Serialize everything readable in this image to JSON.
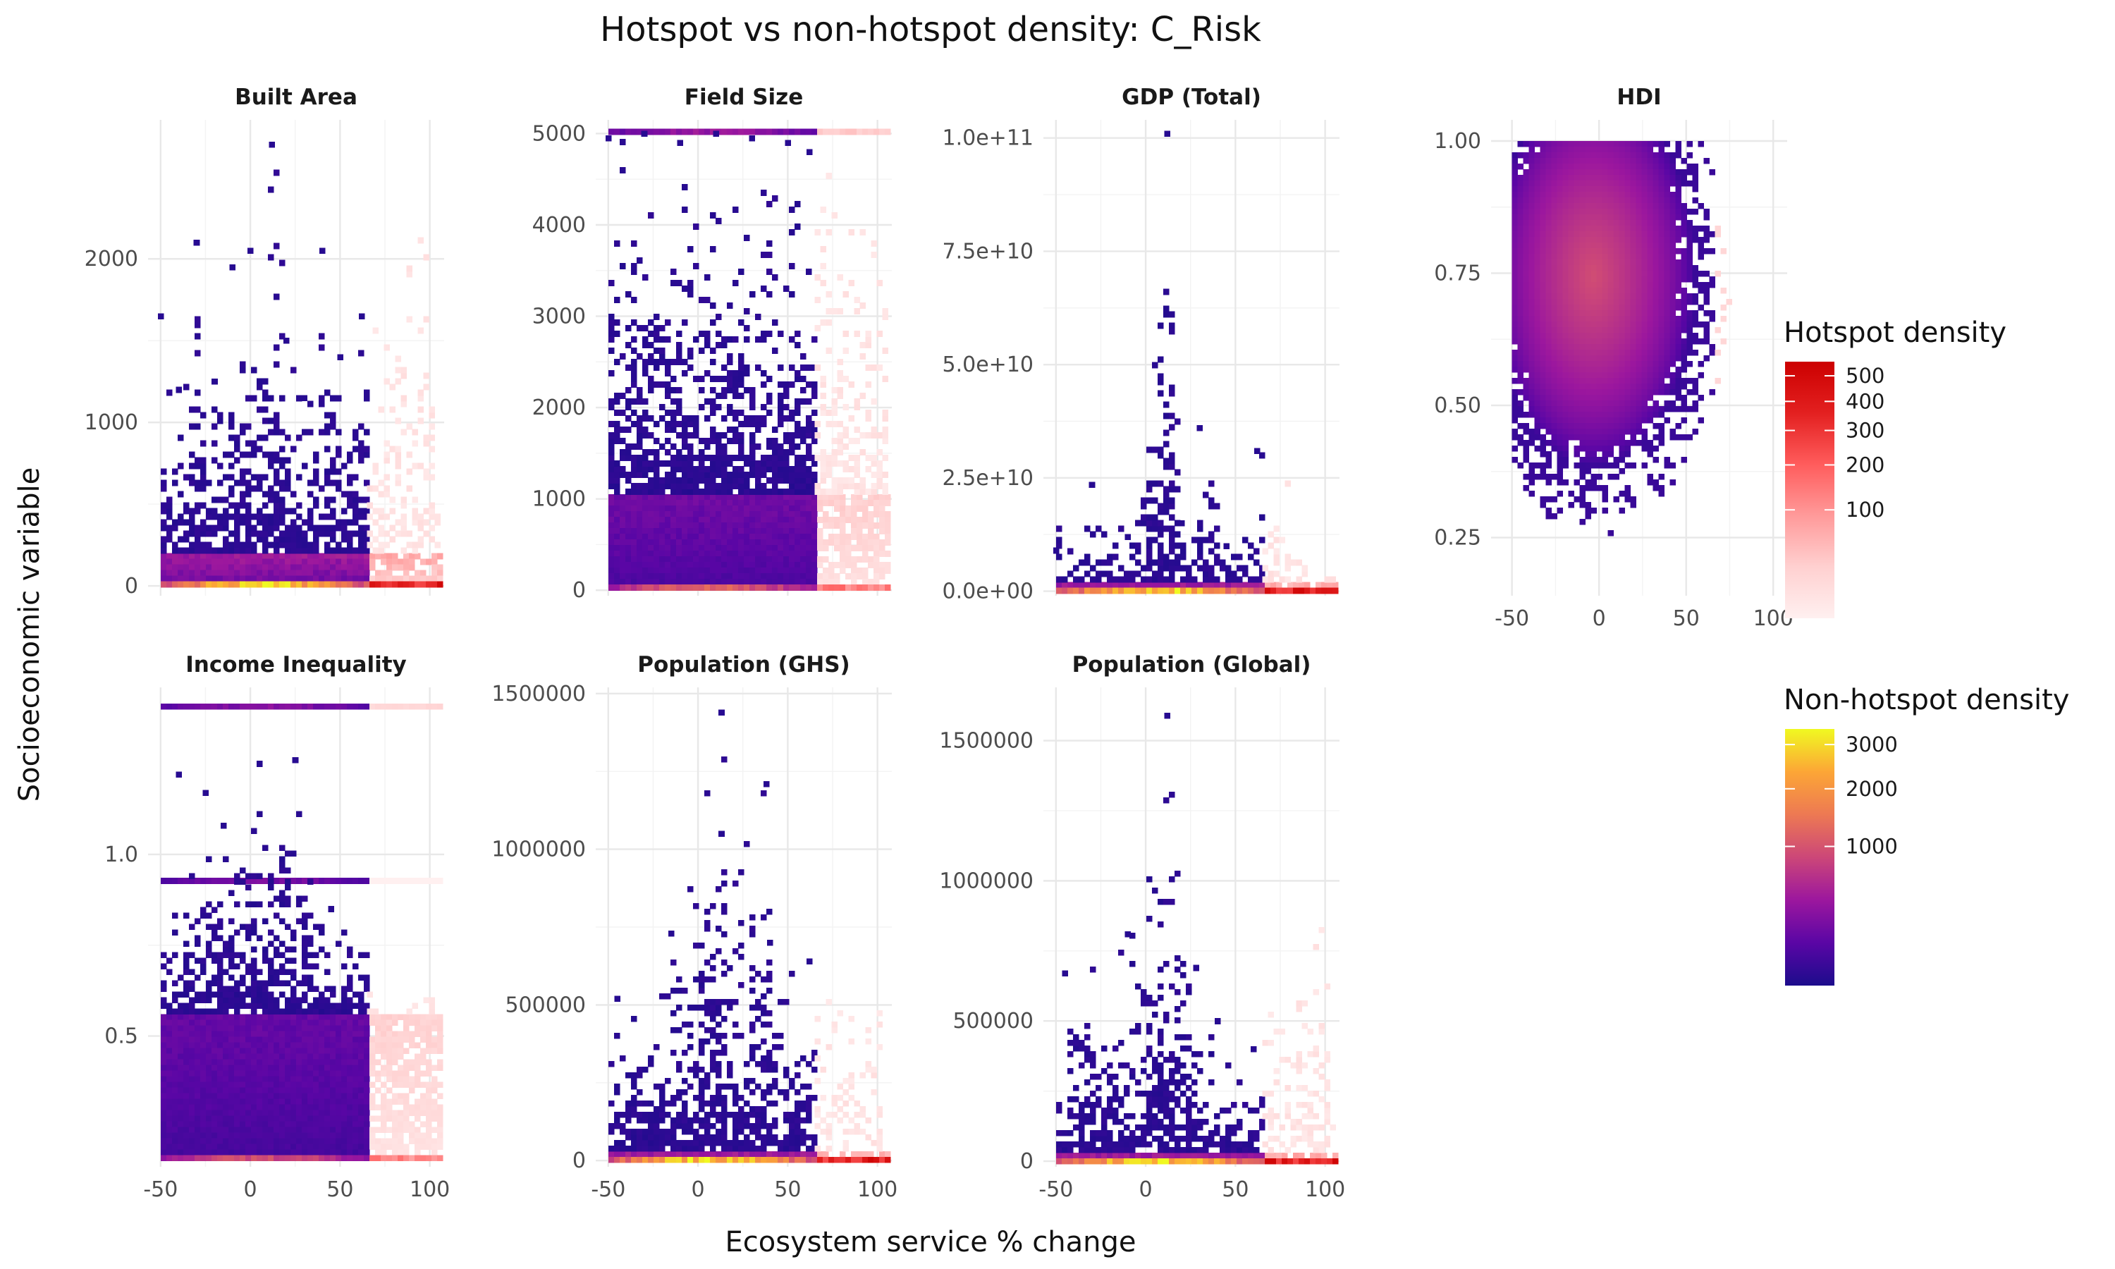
{
  "chart_data": {
    "type": "heatmap",
    "title": "Hotspot vs non-hotspot density: C_Risk",
    "xlabel": "Ecosystem service % change",
    "ylabel": "Socioeconomic variable",
    "grid": true,
    "legend_position": "right",
    "legends": [
      {
        "name": "Hotspot density",
        "scale": "sqrt",
        "colors": [
          "#fff0f0",
          "#ffd0d0",
          "#ff9a9a",
          "#ff5c5c",
          "#e32020",
          "#cc0000"
        ],
        "domain": [
          0,
          560
        ],
        "breaks": [
          100,
          200,
          300,
          400,
          500
        ],
        "labels": [
          "100",
          "200",
          "300",
          "400",
          "500"
        ]
      },
      {
        "name": "Non-hotspot density",
        "scale": "sqrt",
        "colors": [
          "#1c0c8c",
          "#5a06a5",
          "#9c179e",
          "#cc4778",
          "#ed7953",
          "#fca636",
          "#f0f921"
        ],
        "domain": [
          0,
          3400
        ],
        "breaks": [
          1000,
          2000,
          3000
        ],
        "labels": [
          "1000",
          "2000",
          "3000"
        ]
      }
    ],
    "panels": [
      {
        "name": "Built Area",
        "xlim": [
          -57,
          108
        ],
        "ylim": [
          -60,
          2850
        ],
        "xticks": [
          -50,
          0,
          50,
          100
        ],
        "xtick_labels": [
          "-50",
          "0",
          "50",
          "100"
        ],
        "yticks": [
          0,
          1000,
          2000
        ],
        "ytick_labels": [
          "0",
          "1000",
          "2000"
        ],
        "threshold_x": 65,
        "bands": [
          {
            "y0": 0,
            "y1": 200,
            "nonhotspot_peak": 3300,
            "hotspot_peak": 560
          }
        ],
        "scatter_max": [
          {
            "x": -50,
            "y": 1650
          },
          {
            "x": -40,
            "y": 1200
          },
          {
            "x": -30,
            "y": 2100
          },
          {
            "x": -20,
            "y": 1250
          },
          {
            "x": -10,
            "y": 1950
          },
          {
            "x": 0,
            "y": 2050
          },
          {
            "x": 12,
            "y": 2700
          },
          {
            "x": 20,
            "y": 1500
          },
          {
            "x": 30,
            "y": 1150
          },
          {
            "x": 40,
            "y": 2050
          },
          {
            "x": 50,
            "y": 1400
          },
          {
            "x": 62,
            "y": 1650
          }
        ],
        "hotspot_max": [
          {
            "x": 68,
            "y": 1050
          },
          {
            "x": 80,
            "y": 1700
          },
          {
            "x": 90,
            "y": 2150
          },
          {
            "x": 100,
            "y": 1000
          },
          {
            "x": 106,
            "y": 600
          }
        ]
      },
      {
        "name": "Field Size",
        "xlim": [
          -57,
          108
        ],
        "ylim": [
          -60,
          5150
        ],
        "xticks": [
          -50,
          0,
          50,
          100
        ],
        "xtick_labels": [
          "-50",
          "0",
          "50",
          "100"
        ],
        "yticks": [
          0,
          1000,
          2000,
          3000,
          4000,
          5000
        ],
        "ytick_labels": [
          "0",
          "1000",
          "2000",
          "3000",
          "4000",
          "5000"
        ],
        "threshold_x": 65,
        "bands": [
          {
            "y0": 0,
            "y1": 1050,
            "nonhotspot_peak": 1400,
            "hotspot_peak": 200
          },
          {
            "y0": 4990,
            "y1": 5040,
            "nonhotspot_peak": 420,
            "hotspot_peak": 40
          }
        ],
        "scatter_max": [
          {
            "x": -50,
            "y": 4950
          },
          {
            "x": -30,
            "y": 5000
          },
          {
            "x": -10,
            "y": 4900
          },
          {
            "x": 10,
            "y": 5000
          },
          {
            "x": 30,
            "y": 4950
          },
          {
            "x": 50,
            "y": 4900
          },
          {
            "x": 62,
            "y": 4800
          }
        ],
        "hotspot_max": [
          {
            "x": 70,
            "y": 4700
          },
          {
            "x": 85,
            "y": 4500
          },
          {
            "x": 100,
            "y": 4200
          }
        ]
      },
      {
        "name": "GDP (Total)",
        "xlim": [
          -57,
          108
        ],
        "ylim": [
          -1000000000,
          104000000000
        ],
        "xticks": [
          -50,
          0,
          50,
          100
        ],
        "xtick_labels": [
          "-50",
          "0",
          "50",
          "100"
        ],
        "yticks": [
          0,
          25000000000,
          50000000000,
          75000000000,
          100000000000
        ],
        "ytick_labels": [
          "0.0e+00",
          "2.5e+10",
          "5.0e+10",
          "7.5e+10",
          "1.0e+11"
        ],
        "threshold_x": 65,
        "bands": [
          {
            "y0": 0,
            "y1": 2000000000,
            "nonhotspot_peak": 3300,
            "hotspot_peak": 560
          }
        ],
        "scatter_max": [
          {
            "x": -50,
            "y": 9000000000
          },
          {
            "x": -30,
            "y": 23500000000
          },
          {
            "x": -10,
            "y": 12000000000
          },
          {
            "x": 12,
            "y": 101000000000
          },
          {
            "x": 20,
            "y": 15000000000
          },
          {
            "x": 30,
            "y": 36000000000
          },
          {
            "x": 45,
            "y": 10000000000
          },
          {
            "x": 62,
            "y": 31000000000
          }
        ],
        "hotspot_max": [
          {
            "x": 70,
            "y": 26000000000
          },
          {
            "x": 90,
            "y": 10000000000
          },
          {
            "x": 104,
            "y": 9000000000
          }
        ]
      },
      {
        "name": "HDI",
        "xlim": [
          -62,
          108
        ],
        "ylim": [
          0.14,
          1.04
        ],
        "xticks": [
          -50,
          0,
          50,
          100
        ],
        "xtick_labels": [
          "-50",
          "0",
          "50",
          "100"
        ],
        "yticks": [
          0.25,
          0.5,
          0.75,
          1.0
        ],
        "ytick_labels": [
          "0.25",
          "0.50",
          "0.75",
          "1.00"
        ],
        "threshold_x": 65,
        "bands": [
          {
            "y0": 0.18,
            "y1": 1.0,
            "nonhotspot_peak": 900,
            "hotspot_peak": 90
          }
        ],
        "scatter_max": [],
        "hotspot_max": []
      },
      {
        "name": "Income Inequality",
        "xlim": [
          -57,
          108
        ],
        "ylim": [
          0.14,
          1.46
        ],
        "xticks": [
          -50,
          0,
          50,
          100
        ],
        "xtick_labels": [
          "-50",
          "0",
          "50",
          "100"
        ],
        "yticks": [
          0.5,
          1.0
        ],
        "ytick_labels": [
          "0.5",
          "1.0"
        ],
        "threshold_x": 65,
        "bands": [
          {
            "y0": 0.16,
            "y1": 0.56,
            "nonhotspot_peak": 1100,
            "hotspot_peak": 180
          },
          {
            "y0": 1.4,
            "y1": 1.41,
            "nonhotspot_peak": 300,
            "hotspot_peak": 20
          },
          {
            "y0": 0.92,
            "y1": 0.93,
            "nonhotspot_peak": 250,
            "hotspot_peak": 0
          }
        ],
        "scatter_max": [
          {
            "x": -40,
            "y": 1.22
          },
          {
            "x": -25,
            "y": 1.17
          },
          {
            "x": -15,
            "y": 1.08
          },
          {
            "x": 5,
            "y": 1.25
          },
          {
            "x": 25,
            "y": 1.26
          },
          {
            "x": 45,
            "y": 0.85
          }
        ],
        "hotspot_max": [
          {
            "x": 70,
            "y": 0.64
          },
          {
            "x": 90,
            "y": 0.63
          },
          {
            "x": 104,
            "y": 0.62
          }
        ]
      },
      {
        "name": "Population (GHS)",
        "xlim": [
          -57,
          108
        ],
        "ylim": [
          -20000,
          1520000
        ],
        "xticks": [
          -50,
          0,
          50,
          100
        ],
        "xtick_labels": [
          "-50",
          "0",
          "50",
          "100"
        ],
        "yticks": [
          0,
          500000,
          1000000,
          1500000
        ],
        "ytick_labels": [
          "0",
          "500000",
          "1000000",
          "1500000"
        ],
        "threshold_x": 65,
        "bands": [
          {
            "y0": 0,
            "y1": 30000,
            "nonhotspot_peak": 3300,
            "hotspot_peak": 560
          }
        ],
        "scatter_max": [
          {
            "x": -45,
            "y": 520000
          },
          {
            "x": -15,
            "y": 730000
          },
          {
            "x": 13,
            "y": 1440000
          },
          {
            "x": 13,
            "y": 1050000
          },
          {
            "x": 38,
            "y": 1210000
          },
          {
            "x": 40,
            "y": 700000
          },
          {
            "x": 62,
            "y": 640000
          }
        ],
        "hotspot_max": [
          {
            "x": 70,
            "y": 650000
          },
          {
            "x": 88,
            "y": 690000
          },
          {
            "x": 100,
            "y": 200000
          }
        ]
      },
      {
        "name": "Population (Global)",
        "xlim": [
          -57,
          108
        ],
        "ylim": [
          -20000,
          1690000
        ],
        "xticks": [
          -50,
          0,
          50,
          100
        ],
        "xtick_labels": [
          "-50",
          "0",
          "50",
          "100"
        ],
        "yticks": [
          0,
          500000,
          1000000,
          1500000
        ],
        "ytick_labels": [
          "0",
          "500000",
          "1000000",
          "1500000"
        ],
        "threshold_x": 65,
        "bands": [
          {
            "y0": 0,
            "y1": 30000,
            "nonhotspot_peak": 3300,
            "hotspot_peak": 560
          }
        ],
        "scatter_max": [
          {
            "x": -45,
            "y": 670000
          },
          {
            "x": -10,
            "y": 810000
          },
          {
            "x": 12,
            "y": 1590000
          },
          {
            "x": 28,
            "y": 690000
          },
          {
            "x": 40,
            "y": 500000
          },
          {
            "x": 60,
            "y": 400000
          }
        ],
        "hotspot_max": [
          {
            "x": 70,
            "y": 620000
          },
          {
            "x": 90,
            "y": 890000
          },
          {
            "x": 104,
            "y": 200000
          }
        ]
      }
    ]
  }
}
